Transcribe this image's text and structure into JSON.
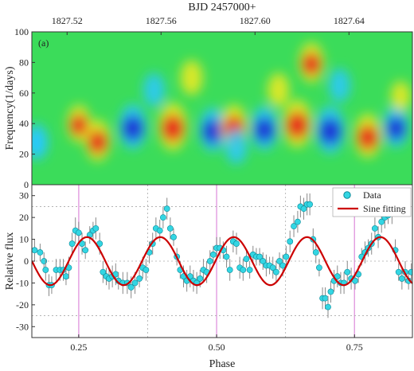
{
  "chart_data": [
    {
      "type": "heatmap",
      "panel_label": "(a)",
      "xlabel": "BJD 2457000+",
      "ylabel": "Frequency(1/days)",
      "xlim": [
        1827.505,
        1827.667
      ],
      "ylim": [
        0,
        100
      ],
      "x_ticks": [
        1827.52,
        1827.56,
        1827.6,
        1827.64
      ],
      "x_tick_labels": [
        "1827.52",
        "1827.56",
        "1827.60",
        "1827.64"
      ],
      "y_ticks": [
        0,
        20,
        40,
        60,
        80,
        100
      ],
      "y_tick_labels": [
        "0",
        "20",
        "40",
        "60",
        "80",
        "100"
      ],
      "colormap": [
        "#1a2bd6",
        "#28c8ff",
        "#2ee05a",
        "#f3ea21",
        "#e8201b"
      ],
      "background_color": "#3bdc5a",
      "blobs": [
        {
          "x": 1827.507,
          "y": 28,
          "intensity": -0.55
        },
        {
          "x": 1827.525,
          "y": 40,
          "intensity": 0.6
        },
        {
          "x": 1827.533,
          "y": 29,
          "intensity": 0.75
        },
        {
          "x": 1827.548,
          "y": 38,
          "intensity": -0.9
        },
        {
          "x": 1827.557,
          "y": 62,
          "intensity": -0.45
        },
        {
          "x": 1827.565,
          "y": 38,
          "intensity": 1.0
        },
        {
          "x": 1827.573,
          "y": 70,
          "intensity": 0.5
        },
        {
          "x": 1827.582,
          "y": 36,
          "intensity": -0.85
        },
        {
          "x": 1827.591,
          "y": 38,
          "intensity": 0.85
        },
        {
          "x": 1827.592,
          "y": 25,
          "intensity": -0.5
        },
        {
          "x": 1827.604,
          "y": 37,
          "intensity": -0.85
        },
        {
          "x": 1827.61,
          "y": 62,
          "intensity": 0.45
        },
        {
          "x": 1827.618,
          "y": 40,
          "intensity": 1.0
        },
        {
          "x": 1827.624,
          "y": 80,
          "intensity": 0.7
        },
        {
          "x": 1827.632,
          "y": 36,
          "intensity": -1.0
        },
        {
          "x": 1827.636,
          "y": 65,
          "intensity": -0.45
        },
        {
          "x": 1827.648,
          "y": 32,
          "intensity": 0.85
        },
        {
          "x": 1827.66,
          "y": 38,
          "intensity": -0.75
        },
        {
          "x": 1827.662,
          "y": 58,
          "intensity": 0.3
        }
      ]
    },
    {
      "type": "scatter",
      "xlabel": "Phase",
      "ylabel": "Relative flux",
      "xlim": [
        0.165,
        0.855
      ],
      "ylim": [
        -35,
        35
      ],
      "x_ticks": [
        0.25,
        0.5,
        0.75
      ],
      "x_tick_labels": [
        "0.25",
        "0.50",
        "0.75"
      ],
      "y_ticks": [
        -30,
        -20,
        -10,
        0,
        10,
        20,
        30
      ],
      "y_tick_labels": [
        "-30",
        "-20",
        "-10",
        "0",
        "10",
        "20",
        "30"
      ],
      "vertical_lines": [
        0.25,
        0.5,
        0.75
      ],
      "dotted_lines_x": [
        0.375,
        0.625
      ],
      "dotted_lines_y": [
        -25,
        0,
        25
      ],
      "legend": {
        "position": "top-right",
        "entries": [
          "Data",
          "Sine fitting"
        ]
      },
      "colors": {
        "data": "#33d6e3",
        "data_edge": "#0c8a99",
        "fit": "#cc0000",
        "vline": "#e29be0",
        "errbar": "#888888"
      },
      "sine_fit": {
        "amplitude": 11,
        "period": 0.133,
        "peak_phase": 0.265
      },
      "points": [
        [
          0.17,
          5,
          5
        ],
        [
          0.18,
          4,
          4
        ],
        [
          0.187,
          0,
          4
        ],
        [
          0.19,
          -4,
          5
        ],
        [
          0.196,
          -11,
          5
        ],
        [
          0.201,
          -11,
          4
        ],
        [
          0.209,
          -4,
          5
        ],
        [
          0.216,
          -4,
          5
        ],
        [
          0.222,
          -4,
          5
        ],
        [
          0.227,
          -7,
          4
        ],
        [
          0.232,
          -3,
          5
        ],
        [
          0.238,
          8,
          5
        ],
        [
          0.244,
          14,
          6
        ],
        [
          0.25,
          13,
          5
        ],
        [
          0.256,
          8,
          5
        ],
        [
          0.262,
          5,
          4
        ],
        [
          0.27,
          12,
          4
        ],
        [
          0.276,
          14,
          4
        ],
        [
          0.281,
          15,
          5
        ],
        [
          0.288,
          8,
          5
        ],
        [
          0.294,
          -5,
          5
        ],
        [
          0.3,
          -7,
          4
        ],
        [
          0.305,
          -8,
          5
        ],
        [
          0.311,
          -7,
          5
        ],
        [
          0.317,
          -6,
          5
        ],
        [
          0.322,
          -9,
          4
        ],
        [
          0.33,
          -10,
          5
        ],
        [
          0.338,
          -10,
          5
        ],
        [
          0.345,
          -12,
          5
        ],
        [
          0.352,
          -10,
          5
        ],
        [
          0.36,
          -8,
          4
        ],
        [
          0.366,
          -3,
          5
        ],
        [
          0.372,
          -4,
          5
        ],
        [
          0.378,
          4,
          5
        ],
        [
          0.384,
          8,
          5
        ],
        [
          0.39,
          15,
          5
        ],
        [
          0.397,
          14,
          5
        ],
        [
          0.403,
          20,
          5
        ],
        [
          0.41,
          24,
          5
        ],
        [
          0.416,
          15,
          5
        ],
        [
          0.422,
          11,
          4
        ],
        [
          0.428,
          2,
          4
        ],
        [
          0.434,
          -4,
          4
        ],
        [
          0.44,
          -7,
          5
        ],
        [
          0.446,
          -9,
          5
        ],
        [
          0.452,
          -7,
          5
        ],
        [
          0.458,
          -9,
          5
        ],
        [
          0.464,
          -10,
          5
        ],
        [
          0.47,
          -8,
          4
        ],
        [
          0.476,
          -4,
          5
        ],
        [
          0.482,
          -5,
          5
        ],
        [
          0.488,
          0,
          5
        ],
        [
          0.494,
          3,
          4
        ],
        [
          0.5,
          6,
          5
        ],
        [
          0.506,
          6,
          5
        ],
        [
          0.512,
          5,
          4
        ],
        [
          0.518,
          2,
          5
        ],
        [
          0.524,
          -4,
          5
        ],
        [
          0.53,
          9,
          5
        ],
        [
          0.536,
          8,
          5
        ],
        [
          0.542,
          -3,
          5
        ],
        [
          0.548,
          -4,
          5
        ],
        [
          0.554,
          1,
          4
        ],
        [
          0.56,
          -4,
          4
        ],
        [
          0.566,
          3,
          4
        ],
        [
          0.572,
          2,
          4
        ],
        [
          0.578,
          2,
          4
        ],
        [
          0.584,
          0,
          4
        ],
        [
          0.59,
          -2,
          5
        ],
        [
          0.596,
          -2,
          4
        ],
        [
          0.602,
          -3,
          5
        ],
        [
          0.608,
          -5,
          5
        ],
        [
          0.614,
          0,
          4
        ],
        [
          0.62,
          -2,
          5
        ],
        [
          0.626,
          2,
          5
        ],
        [
          0.633,
          9,
          5
        ],
        [
          0.64,
          16,
          5
        ],
        [
          0.647,
          18,
          5
        ],
        [
          0.652,
          25,
          5
        ],
        [
          0.658,
          24,
          5
        ],
        [
          0.664,
          26,
          5
        ],
        [
          0.669,
          26,
          5
        ],
        [
          0.675,
          10,
          5
        ],
        [
          0.68,
          4,
          5
        ],
        [
          0.686,
          -3,
          4
        ],
        [
          0.692,
          -17,
          5
        ],
        [
          0.697,
          -17,
          5
        ],
        [
          0.702,
          -21,
          5
        ],
        [
          0.707,
          -14,
          5
        ],
        [
          0.713,
          -9,
          5
        ],
        [
          0.719,
          -7,
          5
        ],
        [
          0.725,
          -10,
          5
        ],
        [
          0.731,
          -10,
          5
        ],
        [
          0.737,
          -5,
          5
        ],
        [
          0.744,
          -8,
          5
        ],
        [
          0.751,
          -9,
          4
        ],
        [
          0.757,
          -6,
          4
        ],
        [
          0.763,
          2,
          4
        ],
        [
          0.769,
          4,
          5
        ],
        [
          0.775,
          6,
          4
        ],
        [
          0.781,
          8,
          5
        ],
        [
          0.787,
          15,
          5
        ],
        [
          0.793,
          11,
          5
        ],
        [
          0.799,
          18,
          5
        ],
        [
          0.805,
          20,
          5
        ],
        [
          0.811,
          21,
          4
        ],
        [
          0.818,
          22,
          5
        ],
        [
          0.824,
          5,
          5
        ],
        [
          0.83,
          -5,
          4
        ],
        [
          0.836,
          -8,
          5
        ],
        [
          0.842,
          -5,
          5
        ],
        [
          0.848,
          -9,
          4
        ],
        [
          0.853,
          -5,
          4
        ]
      ]
    }
  ]
}
